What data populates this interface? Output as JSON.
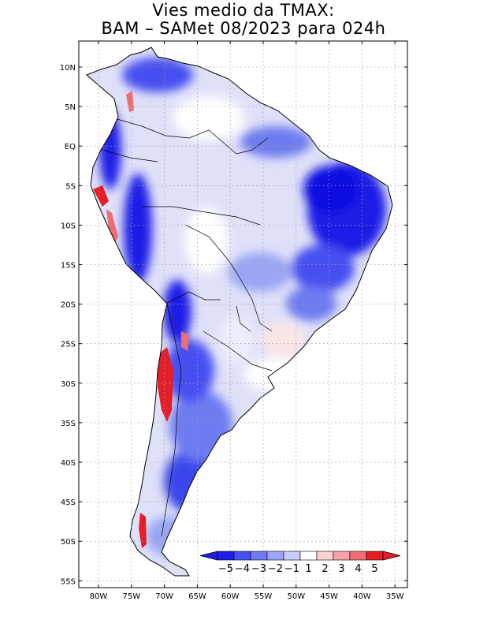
{
  "title": {
    "line1": "Vies medio da TMAX:",
    "line2": "BAM – SAMet 08/2023  para 024h"
  },
  "axes": {
    "lat_labels": [
      "10N",
      "5N",
      "EQ",
      "5S",
      "10S",
      "15S",
      "20S",
      "25S",
      "30S",
      "35S",
      "40S",
      "45S",
      "50S",
      "55S"
    ],
    "lon_labels": [
      "80W",
      "75W",
      "70W",
      "65W",
      "60W",
      "55W",
      "50W",
      "45W",
      "40W",
      "35W"
    ]
  },
  "colorbar": {
    "labels": [
      "−5",
      "−4",
      "−3",
      "−2",
      "−1",
      "1",
      "2",
      "3",
      "4",
      "5"
    ],
    "colors": [
      "#1e1ee6",
      "#4650f0",
      "#6e7cf0",
      "#9aa6f4",
      "#c8ccf8",
      "#ffffff",
      "#fad2d2",
      "#f4a4a8",
      "#ee6e74",
      "#e61e28"
    ]
  },
  "legend_colors": {
    "land_neutral": "#ffffff",
    "ocean": "#ffffff"
  }
}
